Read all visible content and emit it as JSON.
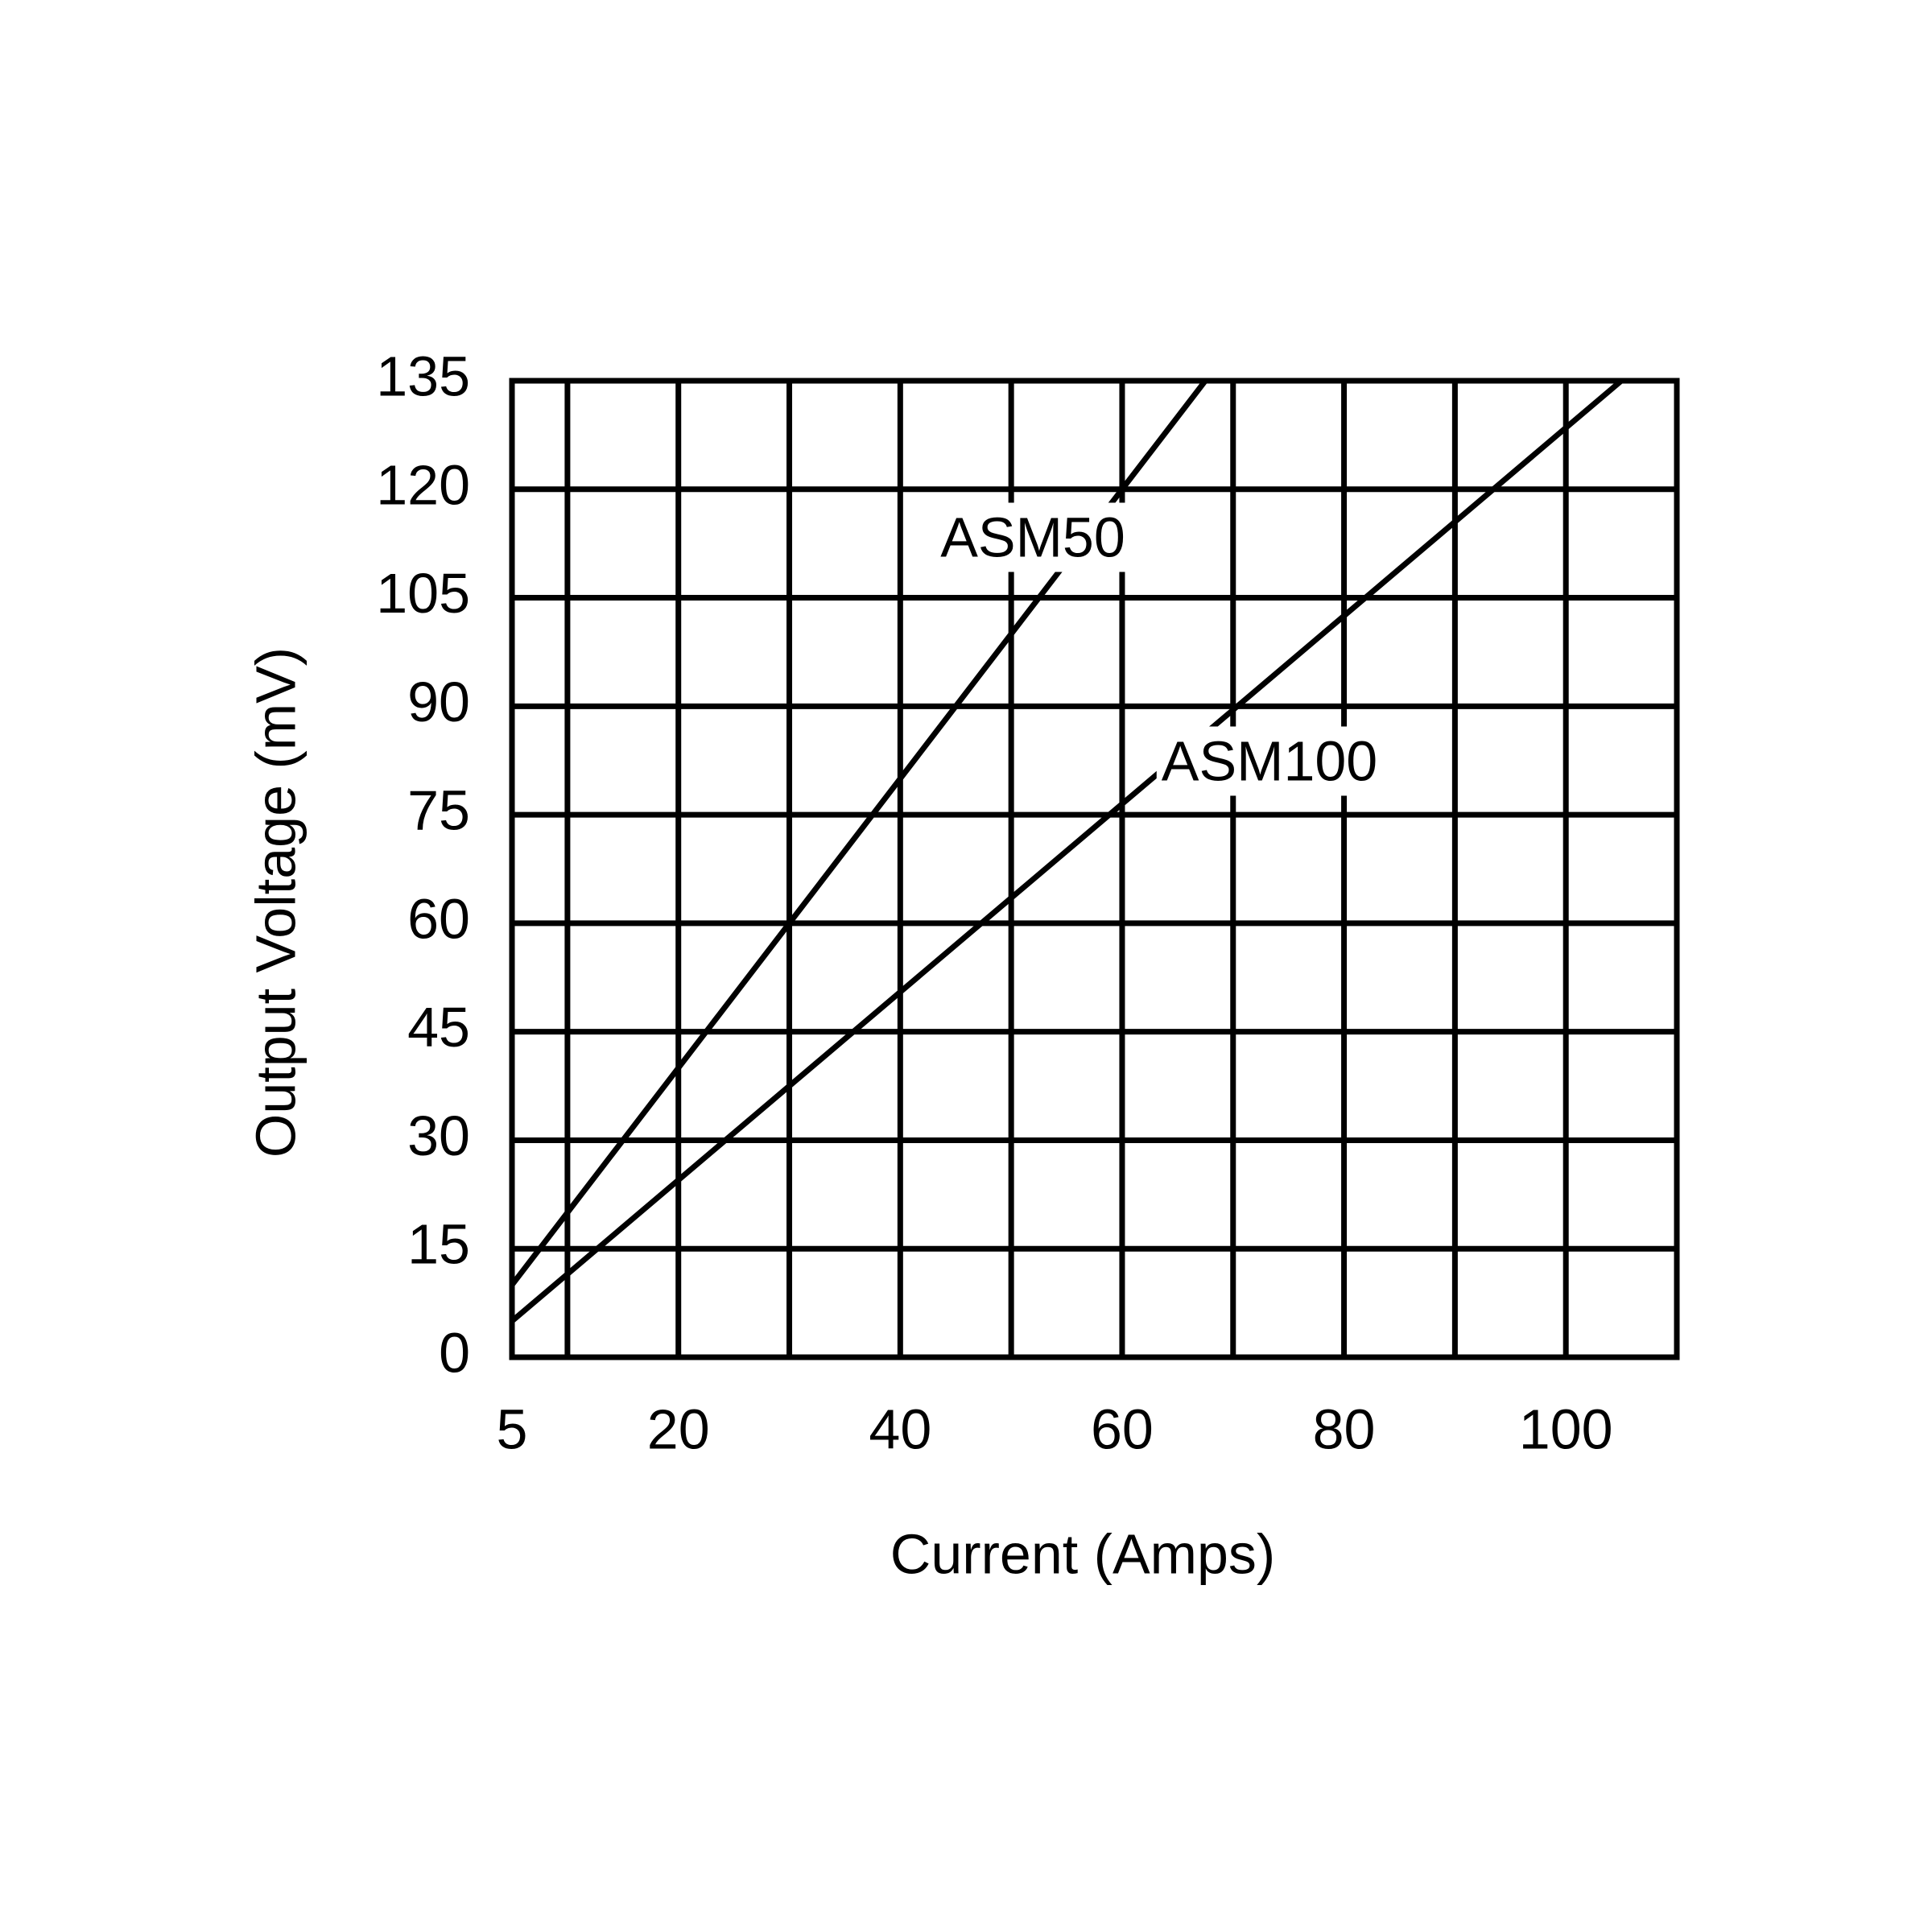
{
  "chart_data": {
    "type": "line",
    "xlabel": "Current (Amps)",
    "ylabel": "Output Voltage (mV)",
    "xlim": [
      5,
      110
    ],
    "ylim": [
      0,
      135
    ],
    "xticks": [
      5,
      20,
      40,
      60,
      80,
      100
    ],
    "xminor": [
      10,
      30,
      50,
      70,
      90
    ],
    "yticks": [
      0,
      15,
      30,
      45,
      60,
      75,
      90,
      105,
      120,
      135
    ],
    "grid": true,
    "series": [
      {
        "name": "ASM50",
        "color": "#000000",
        "x": [
          5,
          67.5
        ],
        "values": [
          10,
          135
        ]
      },
      {
        "name": "ASM100",
        "color": "#000000",
        "x": [
          5,
          105
        ],
        "values": [
          5,
          135
        ]
      }
    ]
  }
}
